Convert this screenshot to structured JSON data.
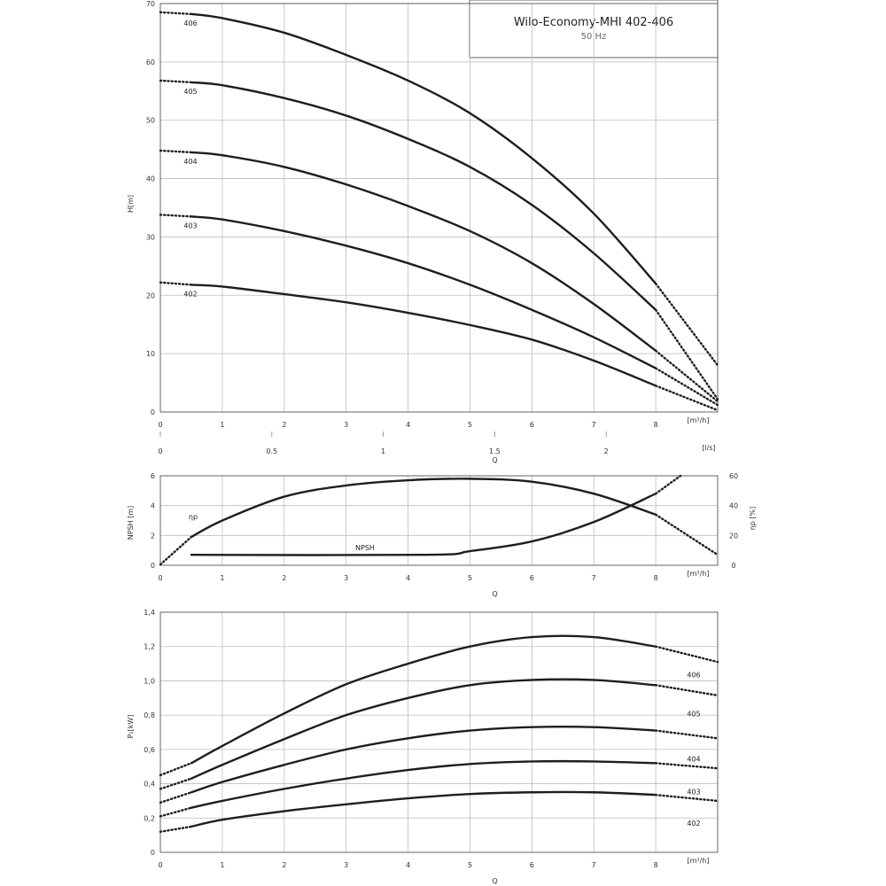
{
  "header": {
    "title": "Wilo-Economy-MHI 402-406",
    "subtitle": "50 Hz"
  },
  "chart_data": [
    {
      "type": "line",
      "name": "head",
      "xlabel": "Q",
      "xunit": "[m³/h]",
      "xlim": [
        0,
        9
      ],
      "xticks": [
        "0",
        "1",
        "2",
        "3",
        "4",
        "5",
        "6",
        "7",
        "8"
      ],
      "x2unit": "[l/s]",
      "x2ticks": [
        "0",
        "0.5",
        "1",
        "1.5",
        "2"
      ],
      "ylabel": "H[m]",
      "ylim": [
        0,
        70
      ],
      "yticks": [
        "0",
        "10",
        "20",
        "30",
        "40",
        "50",
        "60",
        "70"
      ],
      "series": [
        {
          "name": "406",
          "x": [
            0.5,
            1,
            2,
            3,
            4,
            5,
            6,
            7,
            8
          ],
          "y": [
            68.2,
            67.5,
            65.0,
            61.2,
            56.8,
            51.2,
            43.5,
            34.0,
            22.0
          ],
          "ext_start": [
            0,
            68.5
          ],
          "ext_end": [
            9,
            8.0
          ]
        },
        {
          "name": "405",
          "x": [
            0.5,
            1,
            2,
            3,
            4,
            5,
            6,
            7,
            8
          ],
          "y": [
            56.5,
            56.0,
            53.8,
            50.8,
            46.8,
            42.0,
            35.5,
            27.2,
            17.5
          ],
          "ext_start": [
            0,
            56.8
          ],
          "ext_end": [
            9,
            2.2
          ]
        },
        {
          "name": "404",
          "x": [
            0.5,
            1,
            2,
            3,
            4,
            5,
            6,
            7,
            8
          ],
          "y": [
            44.5,
            44.0,
            42.0,
            39.0,
            35.3,
            31.0,
            25.5,
            18.5,
            10.5
          ],
          "ext_start": [
            0,
            44.8
          ],
          "ext_end": [
            9,
            1.8
          ]
        },
        {
          "name": "403",
          "x": [
            0.5,
            1,
            2,
            3,
            4,
            5,
            6,
            7,
            8
          ],
          "y": [
            33.5,
            33.0,
            31.0,
            28.5,
            25.5,
            21.8,
            17.5,
            12.8,
            7.5
          ],
          "ext_start": [
            0,
            33.8
          ],
          "ext_end": [
            9,
            1.2
          ]
        },
        {
          "name": "402",
          "x": [
            0.5,
            1,
            2,
            3,
            4,
            5,
            6,
            7,
            8
          ],
          "y": [
            21.8,
            21.5,
            20.2,
            18.8,
            17.0,
            14.9,
            12.4,
            8.8,
            4.5
          ],
          "ext_start": [
            0,
            22.2
          ],
          "ext_end": [
            9,
            0.3
          ]
        }
      ]
    },
    {
      "type": "line",
      "name": "npsh-efficiency",
      "xlabel": "Q",
      "xunit": "[m³/h]",
      "xlim": [
        0,
        9
      ],
      "xticks": [
        "0",
        "1",
        "2",
        "3",
        "4",
        "5",
        "6",
        "7",
        "8"
      ],
      "ylabel": "NPSH [m]",
      "ylim": [
        0,
        6
      ],
      "yticks": [
        "0",
        "2",
        "4",
        "6"
      ],
      "y2label": "ηp [%]",
      "y2lim": [
        0,
        60
      ],
      "y2ticks": [
        "0",
        "20",
        "40",
        "60"
      ],
      "series": [
        {
          "name": "NPSH",
          "axis": "left",
          "x": [
            0.5,
            4.3,
            5,
            6,
            7,
            8
          ],
          "y": [
            0.7,
            0.7,
            0.95,
            1.6,
            2.9,
            4.8
          ],
          "ext_end": [
            8.4,
            6.0
          ]
        },
        {
          "name": "ηp",
          "axis": "right",
          "x": [
            0.5,
            1,
            2,
            3,
            4,
            5,
            6,
            7,
            8
          ],
          "y": [
            19.0,
            30.0,
            46.0,
            53.5,
            57.0,
            58.0,
            56.0,
            48.0,
            34.0
          ],
          "ext_start": [
            0,
            0.5
          ],
          "ext_end": [
            9,
            7.0
          ]
        }
      ]
    },
    {
      "type": "line",
      "name": "power",
      "xlabel": "Q",
      "xunit": "[m³/h]",
      "xlim": [
        0,
        9
      ],
      "xticks": [
        "0",
        "1",
        "2",
        "3",
        "4",
        "5",
        "6",
        "7",
        "8"
      ],
      "ylabel": "P₁[kW]",
      "ylim": [
        0,
        1.4
      ],
      "yticks": [
        "0",
        "0,2",
        "0,4",
        "0,6",
        "0,8",
        "1,0",
        "1,2",
        "1,4"
      ],
      "series": [
        {
          "name": "406",
          "x": [
            0.5,
            1,
            2,
            3,
            4,
            5,
            6,
            7,
            8
          ],
          "y": [
            0.52,
            0.62,
            0.81,
            0.98,
            1.1,
            1.2,
            1.255,
            1.255,
            1.2
          ],
          "ext_start": [
            0,
            0.45
          ],
          "ext_end": [
            9,
            1.11
          ]
        },
        {
          "name": "405",
          "x": [
            0.5,
            1,
            2,
            3,
            4,
            5,
            6,
            7,
            8
          ],
          "y": [
            0.43,
            0.51,
            0.66,
            0.8,
            0.9,
            0.975,
            1.005,
            1.005,
            0.975
          ],
          "ext_start": [
            0,
            0.37
          ],
          "ext_end": [
            9,
            0.915
          ]
        },
        {
          "name": "404",
          "x": [
            0.5,
            1,
            2,
            3,
            4,
            5,
            6,
            7,
            8
          ],
          "y": [
            0.35,
            0.41,
            0.51,
            0.6,
            0.665,
            0.71,
            0.73,
            0.73,
            0.71
          ],
          "ext_start": [
            0,
            0.29
          ],
          "ext_end": [
            9,
            0.665
          ]
        },
        {
          "name": "403",
          "x": [
            0.5,
            1,
            2,
            3,
            4,
            5,
            6,
            7,
            8
          ],
          "y": [
            0.26,
            0.3,
            0.37,
            0.43,
            0.48,
            0.515,
            0.53,
            0.53,
            0.52
          ],
          "ext_start": [
            0,
            0.21
          ],
          "ext_end": [
            9,
            0.49
          ]
        },
        {
          "name": "402",
          "x": [
            0.5,
            1,
            2,
            3,
            4,
            5,
            6,
            7,
            8
          ],
          "y": [
            0.15,
            0.19,
            0.24,
            0.28,
            0.315,
            0.34,
            0.35,
            0.35,
            0.335
          ],
          "ext_start": [
            0,
            0.12
          ],
          "ext_end": [
            9,
            0.3
          ]
        }
      ]
    }
  ]
}
